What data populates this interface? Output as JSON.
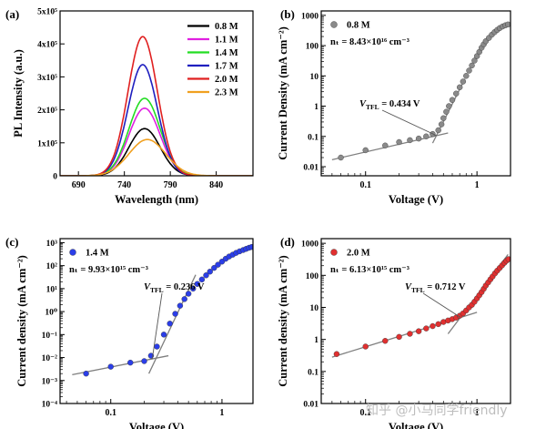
{
  "watermark": "知乎 @小马同学friendly",
  "chart_data": [
    {
      "type": "line",
      "panel_label": "(a)",
      "xlabel": "Wavelength (nm)",
      "ylabel": "PL Intensity (a.u.)",
      "xlim": [
        670,
        880
      ],
      "ylim": [
        0,
        500000
      ],
      "x_ticks": [
        {
          "v": 690,
          "t": "690"
        },
        {
          "v": 740,
          "t": "740"
        },
        {
          "v": 790,
          "t": "790"
        },
        {
          "v": 840,
          "t": "840"
        }
      ],
      "y_ticks": [
        {
          "v": 0,
          "t": "0"
        },
        {
          "v": 100000,
          "t": "1x10⁵"
        },
        {
          "v": 200000,
          "t": "2x10⁵"
        },
        {
          "v": 300000,
          "t": "3x10⁵"
        },
        {
          "v": 400000,
          "t": "4x10⁵"
        },
        {
          "v": 500000,
          "t": "5x10⁵"
        }
      ],
      "legend_position": "top-right",
      "series": [
        {
          "name": "0.8 M",
          "color": "#000000",
          "peak": 762,
          "amplitude": 143000,
          "sigma": 17
        },
        {
          "name": "1.1 M",
          "color": "#e020e0",
          "peak": 762,
          "amplitude": 205000,
          "sigma": 17
        },
        {
          "name": "1.4 M",
          "color": "#22dd22",
          "peak": 762,
          "amplitude": 235000,
          "sigma": 17
        },
        {
          "name": "1.7 M",
          "color": "#1f1fbf",
          "peak": 760,
          "amplitude": 337000,
          "sigma": 16
        },
        {
          "name": "2.0 M",
          "color": "#e02020",
          "peak": 760,
          "amplitude": 422000,
          "sigma": 16
        },
        {
          "name": "2.3 M",
          "color": "#f0a020",
          "peak": 765,
          "amplitude": 110000,
          "sigma": 20
        }
      ]
    },
    {
      "type": "scatter",
      "panel_label": "(b)",
      "xscale": "log",
      "yscale": "log",
      "xlim": [
        0.04,
        2.0
      ],
      "ylim": [
        0.005,
        1400
      ],
      "xlabel": "Voltage (V)",
      "ylabel": "Current Density (mA cm⁻²)",
      "x_ticks": [
        {
          "v": 0.1,
          "t": "0.1"
        },
        {
          "v": 1,
          "t": "1"
        }
      ],
      "y_ticks": [
        {
          "v": 0.01,
          "t": "0.01"
        },
        {
          "v": 0.1,
          "t": "0.1"
        },
        {
          "v": 1,
          "t": "1"
        },
        {
          "v": 10,
          "t": "10"
        },
        {
          "v": 100,
          "t": "100"
        },
        {
          "v": 1000,
          "t": "1000"
        }
      ],
      "legend": "0.8 M",
      "marker_color": "#8a8a8a",
      "n_text": "nₜ = 8.43×10¹⁶ cm⁻³",
      "vtfl_text": "V",
      "vtfl_sub": "TFL",
      "vtfl_value": " = 0.434 V",
      "vtfl": 0.434,
      "points": [
        [
          0.06,
          0.02
        ],
        [
          0.1,
          0.035
        ],
        [
          0.15,
          0.05
        ],
        [
          0.2,
          0.065
        ],
        [
          0.25,
          0.075
        ],
        [
          0.3,
          0.085
        ],
        [
          0.35,
          0.1
        ],
        [
          0.4,
          0.12
        ],
        [
          0.45,
          0.16
        ],
        [
          0.48,
          0.25
        ],
        [
          0.5,
          0.4
        ],
        [
          0.53,
          0.65
        ],
        [
          0.56,
          1
        ],
        [
          0.6,
          1.6
        ],
        [
          0.65,
          2.6
        ],
        [
          0.7,
          4.2
        ],
        [
          0.75,
          6.5
        ],
        [
          0.8,
          10
        ],
        [
          0.85,
          15
        ],
        [
          0.9,
          22
        ],
        [
          0.95,
          32
        ],
        [
          1.0,
          45
        ],
        [
          1.05,
          62
        ],
        [
          1.1,
          85
        ],
        [
          1.15,
          110
        ],
        [
          1.2,
          140
        ],
        [
          1.28,
          180
        ],
        [
          1.36,
          230
        ],
        [
          1.44,
          280
        ],
        [
          1.52,
          330
        ],
        [
          1.6,
          380
        ],
        [
          1.7,
          430
        ],
        [
          1.8,
          470
        ],
        [
          1.9,
          500
        ]
      ],
      "fit_lines": [
        {
          "x1": 0.05,
          "y1": 0.017,
          "x2": 0.55,
          "y2": 0.13
        },
        {
          "x1": 0.4,
          "y1": 0.06,
          "x2": 0.78,
          "y2": 8
        }
      ]
    },
    {
      "type": "scatter",
      "panel_label": "(c)",
      "xscale": "log",
      "yscale": "log",
      "xlim": [
        0.035,
        1.9
      ],
      "ylim": [
        0.0001,
        1500
      ],
      "xlabel": "Voltage (V)",
      "ylabel": "Current density (mA cm⁻²)",
      "x_ticks": [
        {
          "v": 0.1,
          "t": "0.1"
        },
        {
          "v": 1,
          "t": "1"
        }
      ],
      "y_ticks": [
        {
          "v": 0.0001,
          "t": "10⁻⁴"
        },
        {
          "v": 0.001,
          "t": "10⁻³"
        },
        {
          "v": 0.01,
          "t": "10⁻²"
        },
        {
          "v": 0.1,
          "t": "10⁻¹"
        },
        {
          "v": 1,
          "t": "10⁰"
        },
        {
          "v": 10,
          "t": "10¹"
        },
        {
          "v": 100,
          "t": "10²"
        },
        {
          "v": 1000,
          "t": "10³"
        }
      ],
      "legend": "1.4 M",
      "marker_color": "#2b3ee8",
      "n_text": "nₜ = 9.93×10¹⁵ cm⁻³",
      "vtfl_text": "V",
      "vtfl_sub": "TFL",
      "vtfl_value": " = 0.236 V",
      "vtfl": 0.236,
      "points": [
        [
          0.06,
          0.002
        ],
        [
          0.1,
          0.004
        ],
        [
          0.15,
          0.006
        ],
        [
          0.2,
          0.007
        ],
        [
          0.23,
          0.012
        ],
        [
          0.26,
          0.03
        ],
        [
          0.3,
          0.1
        ],
        [
          0.34,
          0.3
        ],
        [
          0.38,
          0.8
        ],
        [
          0.42,
          1.8
        ],
        [
          0.46,
          3.5
        ],
        [
          0.5,
          6
        ],
        [
          0.55,
          10
        ],
        [
          0.6,
          16
        ],
        [
          0.66,
          25
        ],
        [
          0.72,
          38
        ],
        [
          0.78,
          55
        ],
        [
          0.85,
          80
        ],
        [
          0.92,
          110
        ],
        [
          1.0,
          150
        ],
        [
          1.08,
          200
        ],
        [
          1.16,
          250
        ],
        [
          1.25,
          300
        ],
        [
          1.34,
          360
        ],
        [
          1.44,
          420
        ],
        [
          1.55,
          480
        ],
        [
          1.65,
          540
        ],
        [
          1.75,
          600
        ],
        [
          1.85,
          650
        ]
      ],
      "fit_lines": [
        {
          "x1": 0.045,
          "y1": 0.0018,
          "x2": 0.33,
          "y2": 0.012
        },
        {
          "x1": 0.22,
          "y1": 0.002,
          "x2": 0.58,
          "y2": 40
        }
      ]
    },
    {
      "type": "scatter",
      "panel_label": "(d)",
      "xscale": "log",
      "yscale": "log",
      "xlim": [
        0.04,
        2.0
      ],
      "ylim": [
        0.01,
        1400
      ],
      "xlabel": "Voltage (V)",
      "ylabel": "Current density (mA cm⁻²)",
      "x_ticks": [
        {
          "v": 0.1,
          "t": "0.1"
        },
        {
          "v": 1,
          "t": "1"
        }
      ],
      "y_ticks": [
        {
          "v": 0.01,
          "t": "0.01"
        },
        {
          "v": 0.1,
          "t": "0.1"
        },
        {
          "v": 1,
          "t": "1"
        },
        {
          "v": 10,
          "t": "10"
        },
        {
          "v": 100,
          "t": "100"
        },
        {
          "v": 1000,
          "t": "1000"
        }
      ],
      "legend": "2.0 M",
      "marker_color": "#e03030",
      "n_text": "nₜ = 6.13×10¹⁵ cm⁻³",
      "vtfl_text": "V",
      "vtfl_sub": "TFL",
      "vtfl_value": " = 0.712 V",
      "vtfl": 0.712,
      "points": [
        [
          0.055,
          0.35
        ],
        [
          0.1,
          0.6
        ],
        [
          0.15,
          0.9
        ],
        [
          0.2,
          1.2
        ],
        [
          0.25,
          1.5
        ],
        [
          0.3,
          1.8
        ],
        [
          0.35,
          2.2
        ],
        [
          0.4,
          2.6
        ],
        [
          0.45,
          3.0
        ],
        [
          0.5,
          3.5
        ],
        [
          0.55,
          3.9
        ],
        [
          0.6,
          4.3
        ],
        [
          0.65,
          4.8
        ],
        [
          0.7,
          5.5
        ],
        [
          0.75,
          6.5
        ],
        [
          0.8,
          8
        ],
        [
          0.85,
          10
        ],
        [
          0.9,
          12
        ],
        [
          0.95,
          15
        ],
        [
          1.0,
          19
        ],
        [
          1.05,
          24
        ],
        [
          1.1,
          30
        ],
        [
          1.15,
          38
        ],
        [
          1.2,
          48
        ],
        [
          1.26,
          60
        ],
        [
          1.32,
          75
        ],
        [
          1.38,
          92
        ],
        [
          1.45,
          115
        ],
        [
          1.52,
          140
        ],
        [
          1.6,
          170
        ],
        [
          1.68,
          205
        ],
        [
          1.76,
          245
        ],
        [
          1.84,
          285
        ],
        [
          1.92,
          320
        ]
      ],
      "fit_lines": [
        {
          "x1": 0.05,
          "y1": 0.28,
          "x2": 1.0,
          "y2": 7
        },
        {
          "x1": 0.55,
          "y1": 1.5,
          "x2": 1.9,
          "y2": 450
        }
      ]
    }
  ]
}
